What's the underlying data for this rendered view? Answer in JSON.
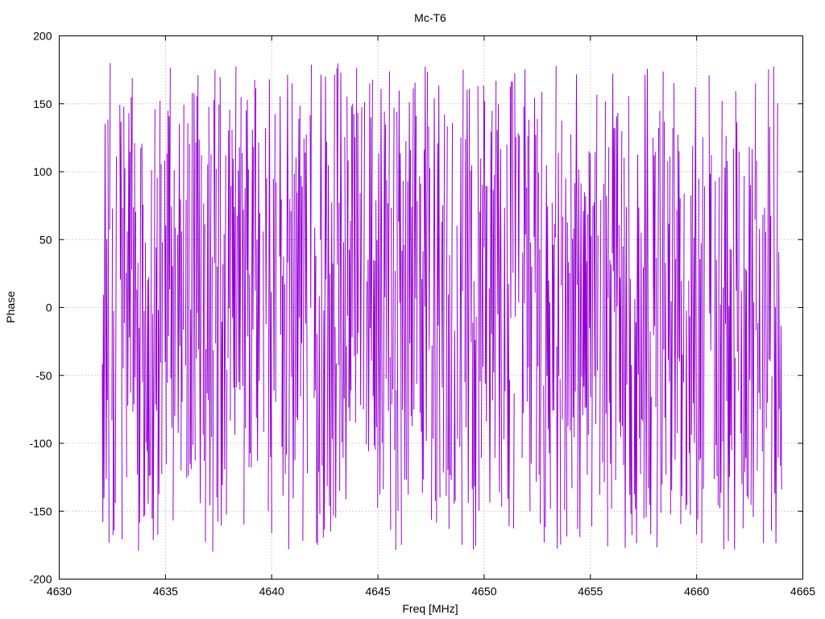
{
  "chart_data": {
    "type": "line",
    "title": "Mc-T6",
    "xlabel": "Freq [MHz]",
    "ylabel": "Phase",
    "xlim": [
      4630,
      4665
    ],
    "ylim": [
      -200,
      200
    ],
    "xticks": [
      4630,
      4635,
      4640,
      4645,
      4650,
      4655,
      4660,
      4665
    ],
    "yticks": [
      -200,
      -150,
      -100,
      -50,
      0,
      50,
      100,
      150,
      200
    ],
    "grid": true,
    "series": [
      {
        "color": "#9400d3",
        "x_range": [
          4632,
          4664
        ],
        "wrap_range": [
          -180,
          180
        ],
        "points": 1200
      }
    ]
  }
}
